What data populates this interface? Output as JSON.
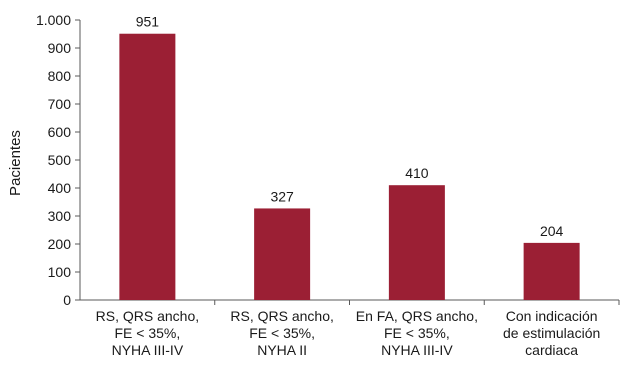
{
  "chart_data": {
    "type": "bar",
    "categories": [
      [
        "RS, QRS ancho,",
        "FE < 35%,",
        "NYHA III-IV"
      ],
      [
        "RS, QRS ancho,",
        "FE < 35%,",
        "NYHA II"
      ],
      [
        "En FA, QRS ancho,",
        "FE < 35%,",
        "NYHA III-IV"
      ],
      [
        "Con indicación",
        "de estimulación",
        "cardiaca"
      ]
    ],
    "values": [
      951,
      327,
      410,
      204
    ],
    "data_labels": [
      "951",
      "327",
      "410",
      "204"
    ],
    "title": "",
    "xlabel": "",
    "ylabel": "Pacientes",
    "ylim": [
      0,
      1000
    ],
    "yticks": [
      0,
      100,
      200,
      300,
      400,
      500,
      600,
      700,
      800,
      900,
      1000
    ],
    "ytick_labels": [
      "0",
      "100",
      "200",
      "300",
      "400",
      "500",
      "600",
      "700",
      "800",
      "900",
      "1.000"
    ],
    "grid": false,
    "legend": "none",
    "colors": {
      "bar": "#9b1f34",
      "axis": "#595959"
    }
  }
}
